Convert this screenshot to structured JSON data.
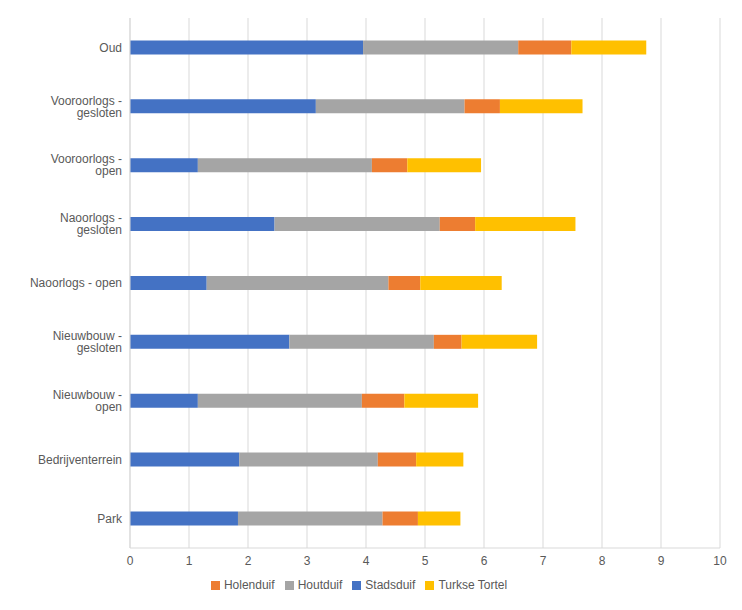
{
  "chart_data": {
    "type": "bar",
    "orientation": "horizontal",
    "stacked": true,
    "grid": true,
    "legend": "bottom",
    "categories": [
      "Oud",
      "Vooroorlogs - gesloten",
      "Vooroorlogs - open",
      "Naoorlogs - gesloten",
      "Naoorlogs - open",
      "Nieuwbouw - gesloten",
      "Nieuwbouw - open",
      "Bedrijventerrein",
      "Park"
    ],
    "series": [
      {
        "name": "Stadsduif",
        "color": "#4472c4",
        "values": [
          3.95,
          3.15,
          1.15,
          2.45,
          1.3,
          2.7,
          1.15,
          1.85,
          1.83
        ]
      },
      {
        "name": "Houtduif",
        "color": "#a5a5a5",
        "values": [
          2.63,
          2.52,
          2.95,
          2.8,
          3.08,
          2.45,
          2.78,
          2.35,
          2.45
        ]
      },
      {
        "name": "Holenduif",
        "color": "#ed7d31",
        "values": [
          0.9,
          0.6,
          0.6,
          0.6,
          0.54,
          0.47,
          0.72,
          0.65,
          0.6
        ]
      },
      {
        "name": "Turkse Tortel",
        "color": "#ffc000",
        "values": [
          1.27,
          1.4,
          1.25,
          1.7,
          1.38,
          1.28,
          1.25,
          0.8,
          0.72
        ]
      }
    ],
    "xlim": [
      0,
      10
    ],
    "xticks": [
      0,
      1,
      2,
      3,
      4,
      5,
      6,
      7,
      8,
      9,
      10
    ]
  }
}
